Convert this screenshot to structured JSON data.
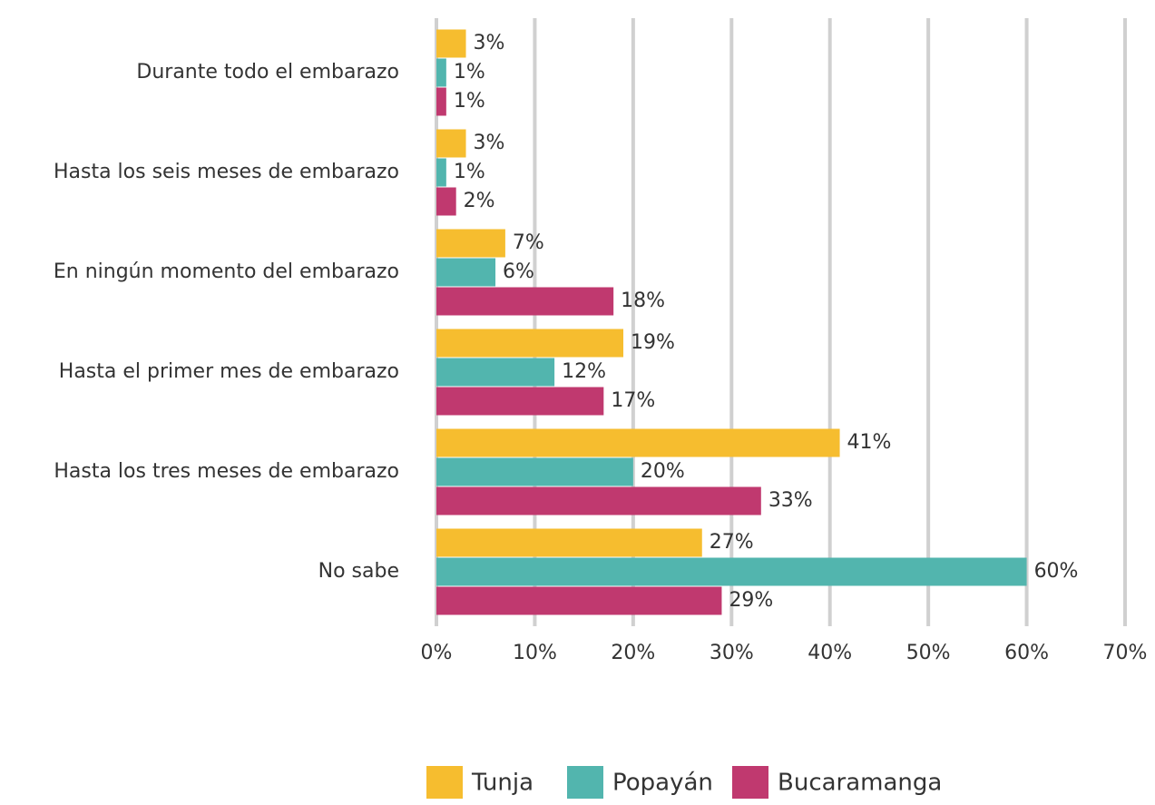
{
  "chart_data": {
    "type": "bar",
    "orientation": "horizontal",
    "categories": [
      "Durante todo el embarazo",
      "Hasta los seis meses de embarazo",
      "En ningún momento del embarazo",
      "Hasta el primer mes de embarazo",
      "Hasta los tres meses de embarazo",
      "No sabe"
    ],
    "series": [
      {
        "name": "Tunja",
        "color": "#f6bd2f",
        "values": [
          3,
          3,
          7,
          19,
          41,
          27
        ],
        "value_labels": [
          "3%",
          "3%",
          "7%",
          "19%",
          "41%",
          "27%"
        ]
      },
      {
        "name": "Popayán",
        "color": "#52b5ae",
        "values": [
          1,
          1,
          6,
          12,
          20,
          60
        ],
        "value_labels": [
          "1%",
          "1%",
          "6%",
          "12%",
          "20%",
          "60%"
        ]
      },
      {
        "name": "Bucaramanga",
        "color": "#c0396f",
        "values": [
          1,
          2,
          18,
          17,
          33,
          29
        ],
        "value_labels": [
          "1%",
          "2%",
          "18%",
          "17%",
          "33%",
          "29%"
        ]
      }
    ],
    "xlim": [
      0,
      70
    ],
    "xticks": [
      {
        "value": 0,
        "label": "0%"
      },
      {
        "value": 10,
        "label": "10%"
      },
      {
        "value": 20,
        "label": "20%"
      },
      {
        "value": 30,
        "label": "30%"
      },
      {
        "value": 40,
        "label": "40%"
      },
      {
        "value": 50,
        "label": "50%"
      },
      {
        "value": 60,
        "label": "60%"
      },
      {
        "value": 70,
        "label": "70%"
      }
    ],
    "grid": true,
    "legend": "bottom"
  }
}
